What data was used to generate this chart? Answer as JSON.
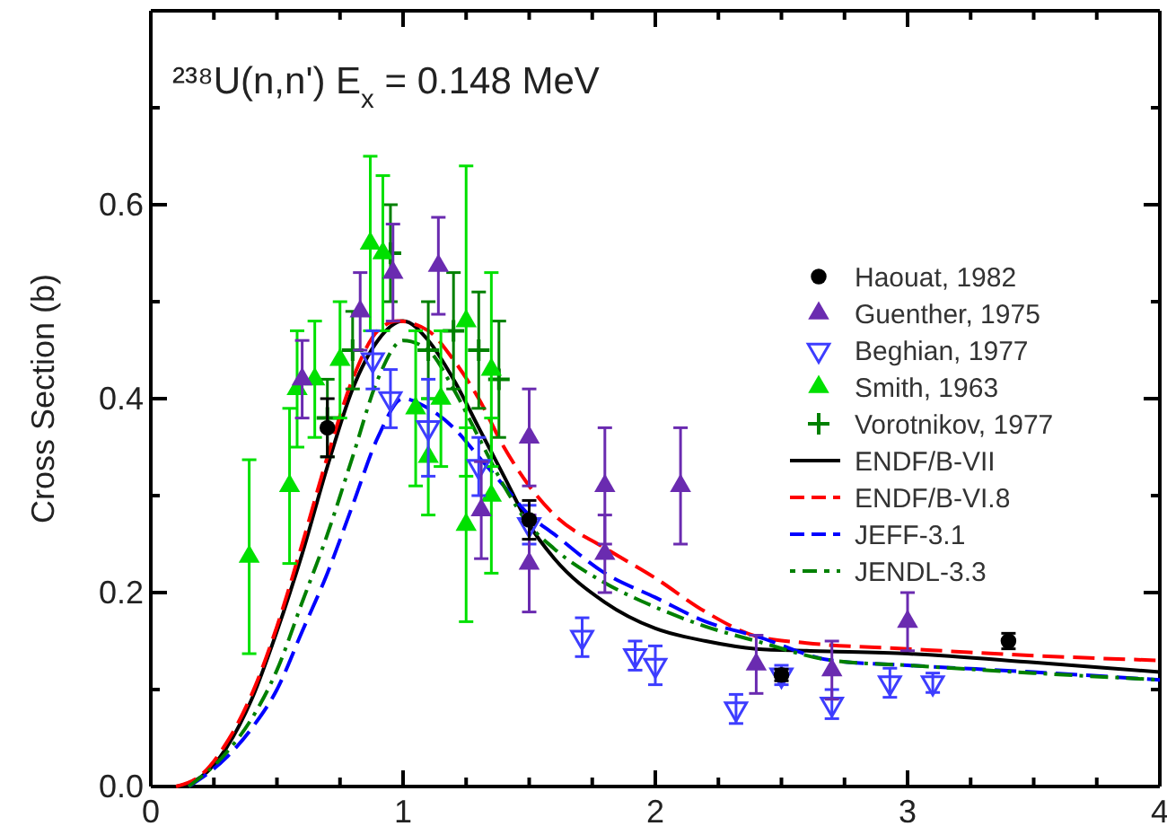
{
  "chart_data": {
    "type": "scatter",
    "title": "²³⁸U(n,n')  E$_{x}$ = 0.148 MeV",
    "ylabel": "Cross Section (b)",
    "xlim": [
      0,
      4
    ],
    "ylim": [
      0,
      0.8
    ],
    "xticks": [
      0,
      {
        "value": 0.25,
        "label": null
      },
      {
        "value": 0.5,
        "label": null
      },
      {
        "value": 0.75,
        "label": null
      },
      1,
      {
        "value": 1.25,
        "label": null
      },
      {
        "value": 1.5,
        "label": null
      },
      {
        "value": 1.75,
        "label": null
      },
      2,
      {
        "value": 2.25,
        "label": null
      },
      {
        "value": 2.5,
        "label": null
      },
      {
        "value": 2.75,
        "label": null
      },
      3,
      {
        "value": 3.25,
        "label": null
      },
      {
        "value": 3.5,
        "label": null
      },
      {
        "value": 3.75,
        "label": null
      },
      4
    ],
    "yticks": [
      {
        "value": 0,
        "label": "0.0"
      },
      {
        "value": 0.1,
        "label": null
      },
      0.2,
      {
        "value": 0.3,
        "label": null
      },
      0.4,
      {
        "value": 0.5,
        "label": null
      },
      0.6,
      {
        "value": 0.7,
        "label": null
      }
    ],
    "grid": false,
    "legend": "right",
    "series": [
      {
        "name": "Haouat, 1982",
        "marker": "circle",
        "color": "#000000",
        "x": [
          0.7,
          1.5,
          2.5,
          3.4
        ],
        "values": [
          0.37,
          0.275,
          0.115,
          0.15
        ],
        "errors": [
          0.03,
          0.02,
          0.006,
          0.008
        ]
      },
      {
        "name": "Guenther, 1975",
        "marker": "triangle",
        "color": "#6a2bb0",
        "x": [
          0.6,
          0.83,
          0.96,
          1.14,
          1.31,
          1.5,
          1.5,
          1.8,
          1.8,
          2.1,
          2.4,
          2.7,
          3.0
        ],
        "values": [
          0.42,
          0.49,
          0.53,
          0.537,
          0.285,
          0.36,
          0.23,
          0.31,
          0.24,
          0.31,
          0.126,
          0.12,
          0.17
        ],
        "errors": [
          0.04,
          0.04,
          0.05,
          0.05,
          0.05,
          0.05,
          0.05,
          0.06,
          0.04,
          0.06,
          0.03,
          0.03,
          0.03
        ]
      },
      {
        "name": "Beghian, 1977",
        "marker": "triangle-down",
        "color": "#3d3dff",
        "x": [
          0.88,
          0.95,
          1.1,
          1.3,
          1.5,
          1.71,
          1.92,
          2.0,
          2.32,
          2.5,
          2.7,
          2.93,
          3.1
        ],
        "values": [
          0.44,
          0.4,
          0.37,
          0.33,
          0.27,
          0.154,
          0.135,
          0.125,
          0.08,
          0.115,
          0.085,
          0.107,
          0.107
        ],
        "errors": [
          0.03,
          0.03,
          0.05,
          0.03,
          0.02,
          0.02,
          0.015,
          0.02,
          0.015,
          0.01,
          0.015,
          0.015,
          0.01
        ]
      },
      {
        "name": "Smith, 1963",
        "marker": "triangle",
        "color": "#00e000",
        "x": [
          0.39,
          0.55,
          0.58,
          0.65,
          0.75,
          0.87,
          0.92,
          1.05,
          1.1,
          1.15,
          1.25,
          1.25,
          1.35,
          1.35
        ],
        "values": [
          0.237,
          0.31,
          0.41,
          0.42,
          0.44,
          0.56,
          0.55,
          0.39,
          0.34,
          0.4,
          0.48,
          0.27,
          0.43,
          0.3
        ],
        "errors": [
          0.1,
          0.08,
          0.06,
          0.06,
          0.06,
          0.09,
          0.08,
          0.08,
          0.06,
          0.07,
          0.16,
          0.1,
          0.1,
          0.08
        ]
      },
      {
        "name": "Vorotnikov, 1977",
        "marker": "cross",
        "color": "#008000",
        "x": [
          0.7,
          0.8,
          0.95,
          1.1,
          1.2,
          1.3,
          1.38
        ],
        "values": [
          0.38,
          0.45,
          0.55,
          0.45,
          0.47,
          0.45,
          0.42
        ],
        "errors": [
          0.04,
          0.04,
          0.05,
          0.05,
          0.06,
          0.06,
          0.06
        ]
      },
      {
        "name": "ENDF/B-VII",
        "type": "line",
        "line_style": "solid",
        "color": "#000000",
        "x": [
          0.1,
          0.2,
          0.3,
          0.4,
          0.5,
          0.6,
          0.7,
          0.8,
          0.9,
          1.0,
          1.1,
          1.2,
          1.3,
          1.4,
          1.5,
          1.6,
          1.8,
          2.0,
          2.2,
          2.4,
          2.6,
          3.0,
          3.5,
          4.0
        ],
        "values": [
          0,
          0.01,
          0.04,
          0.09,
          0.16,
          0.24,
          0.33,
          0.41,
          0.46,
          0.48,
          0.46,
          0.42,
          0.37,
          0.32,
          0.27,
          0.235,
          0.19,
          0.163,
          0.15,
          0.142,
          0.14,
          0.137,
          0.128,
          0.118
        ]
      },
      {
        "name": "ENDF/B-VI.8",
        "type": "line",
        "line_style": "dashed",
        "color": "#ff0000",
        "x": [
          0.1,
          0.2,
          0.3,
          0.4,
          0.5,
          0.6,
          0.7,
          0.8,
          0.9,
          0.98,
          1.1,
          1.2,
          1.3,
          1.4,
          1.5,
          1.6,
          1.8,
          2.0,
          2.2,
          2.4,
          2.6,
          3.0,
          3.5,
          4.0
        ],
        "values": [
          0,
          0.012,
          0.045,
          0.095,
          0.165,
          0.25,
          0.34,
          0.42,
          0.47,
          0.48,
          0.47,
          0.44,
          0.4,
          0.35,
          0.31,
          0.28,
          0.246,
          0.215,
          0.18,
          0.155,
          0.148,
          0.142,
          0.135,
          0.13
        ]
      },
      {
        "name": "JEFF-3.1",
        "type": "line",
        "line_style": "dashed",
        "color": "#0000ff",
        "x": [
          0.15,
          0.3,
          0.4,
          0.5,
          0.6,
          0.7,
          0.8,
          0.9,
          1.0,
          1.1,
          1.2,
          1.3,
          1.4,
          1.5,
          1.6,
          1.8,
          2.0,
          2.2,
          2.4,
          2.7,
          3.0,
          3.5,
          4.0
        ],
        "values": [
          0,
          0.03,
          0.06,
          0.1,
          0.16,
          0.22,
          0.29,
          0.36,
          0.4,
          0.39,
          0.37,
          0.34,
          0.31,
          0.28,
          0.26,
          0.22,
          0.195,
          0.17,
          0.155,
          0.13,
          0.125,
          0.118,
          0.11
        ]
      },
      {
        "name": "JENDL-3.3",
        "type": "line",
        "line_style": "dashdot",
        "color": "#008000",
        "x": [
          0.15,
          0.3,
          0.4,
          0.5,
          0.6,
          0.7,
          0.8,
          0.9,
          1.0,
          1.1,
          1.2,
          1.3,
          1.4,
          1.5,
          1.6,
          1.8,
          2.0,
          2.2,
          2.4,
          2.7,
          3.0,
          3.5,
          4.0
        ],
        "values": [
          0,
          0.035,
          0.07,
          0.12,
          0.19,
          0.26,
          0.34,
          0.42,
          0.46,
          0.45,
          0.41,
          0.36,
          0.31,
          0.27,
          0.245,
          0.21,
          0.185,
          0.165,
          0.15,
          0.13,
          0.125,
          0.117,
          0.11
        ]
      }
    ]
  }
}
